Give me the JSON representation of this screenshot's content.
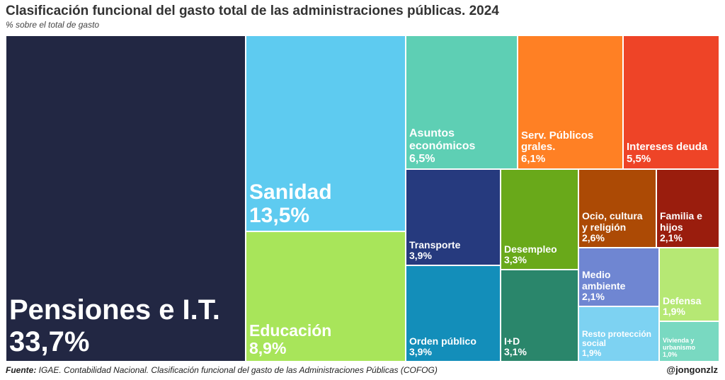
{
  "chart_data": {
    "type": "treemap",
    "title": "Clasificación funcional del gasto total de las administraciones públicas. 2024",
    "subtitle": "% sobre el total de gasto",
    "items": [
      {
        "label": "Pensiones e I.T.",
        "value_label": "33,7%",
        "value": 33.7,
        "color": "#222743"
      },
      {
        "label": "Sanidad",
        "value_label": "13,5%",
        "value": 13.5,
        "color": "#5ecbf0"
      },
      {
        "label": "Educación",
        "value_label": "8,9%",
        "value": 8.9,
        "color": "#a8e55a"
      },
      {
        "label": "Asuntos\neconómicos",
        "value_label": "6,5%",
        "value": 6.5,
        "color": "#5ecfb4"
      },
      {
        "label": "Serv. Públicos\ngrales.",
        "value_label": "6,1%",
        "value": 6.1,
        "color": "#ff8024"
      },
      {
        "label": "Intereses deuda",
        "value_label": "5,5%",
        "value": 5.5,
        "color": "#ee4427"
      },
      {
        "label": "Transporte",
        "value_label": "3,9%",
        "value": 3.9,
        "color": "#263a7e"
      },
      {
        "label": "Orden público",
        "value_label": "3,9%",
        "value": 3.9,
        "color": "#138eba"
      },
      {
        "label": "Desempleo",
        "value_label": "3,3%",
        "value": 3.3,
        "color": "#69a91a"
      },
      {
        "label": "I+D",
        "value_label": "3,1%",
        "value": 3.1,
        "color": "#2a866b"
      },
      {
        "label": "Ocio, cultura\ny religión",
        "value_label": "2,6%",
        "value": 2.6,
        "color": "#ac4a05"
      },
      {
        "label": "Familia e\nhijos",
        "value_label": "2,1%",
        "value": 2.1,
        "color": "#9a1d0d"
      },
      {
        "label": "Medio\nambiente",
        "value_label": "2,1%",
        "value": 2.1,
        "color": "#6f86d2"
      },
      {
        "label": "Resto protección\nsocial",
        "value_label": "1,9%",
        "value": 1.9,
        "color": "#7dd2f2"
      },
      {
        "label": "Defensa",
        "value_label": "1,9%",
        "value": 1.9,
        "color": "#b6e874"
      },
      {
        "label": "Vivienda y\nurbanismo",
        "value_label": "1,0%",
        "value": 1.0,
        "color": "#79d9c1"
      }
    ]
  },
  "footer": {
    "source_label": "Fuente:",
    "source_text": " IGAE. Contabilidad Nacional. Clasificación funcional del gasto de las Administraciones Públicas (COFOG)",
    "handle": "@jongonzlz"
  }
}
